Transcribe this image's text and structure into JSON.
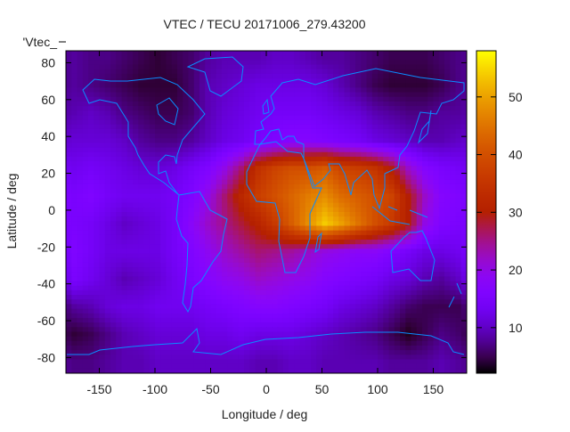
{
  "chart_data": {
    "type": "heatmap",
    "title": "VTEC / TECU 20171006_279.43200",
    "xlabel": "Longitude / deg",
    "ylabel": "Latitude / deg",
    "key_label": "'Vtec_",
    "xlim": [
      -180,
      180
    ],
    "ylim": [
      -88.5,
      86.5
    ],
    "xticks": [
      -150,
      -100,
      -50,
      0,
      50,
      100,
      150
    ],
    "yticks": [
      -80,
      -60,
      -40,
      -20,
      0,
      20,
      40,
      60,
      80
    ],
    "xtick_labels": [
      "-150",
      "-100",
      "-50",
      "0",
      "50",
      "100",
      "150"
    ],
    "ytick_labels": [
      "-80",
      "-60",
      "-40",
      "-20",
      "0",
      "20",
      "40",
      "60",
      "80"
    ],
    "colorbar": {
      "range": [
        2.1,
        58
      ],
      "ticks": [
        10,
        20,
        30,
        40,
        50
      ],
      "tick_labels": [
        "10",
        "20",
        "30",
        "40",
        "50"
      ],
      "palette": "black-blue-purple-red-orange-yellow"
    },
    "coastline_color": "#0a8cff",
    "grid_lon_centers": [
      -172.5,
      -157.5,
      -142.5,
      -127.5,
      -112.5,
      -97.5,
      -82.5,
      -67.5,
      -52.5,
      -37.5,
      -22.5,
      -7.5,
      7.5,
      22.5,
      37.5,
      52.5,
      67.5,
      82.5,
      97.5,
      112.5,
      127.5,
      142.5,
      157.5,
      172.5
    ],
    "grid_lat_centers": [
      82.5,
      67.5,
      52.5,
      37.5,
      22.5,
      7.5,
      -7.5,
      -22.5,
      -37.5,
      -52.5,
      -67.5,
      -82.5
    ],
    "values": [
      [
        8,
        7,
        7,
        6,
        5,
        4,
        5,
        6,
        8,
        9,
        9,
        9,
        10,
        10,
        9,
        8,
        8,
        7,
        6,
        5,
        5,
        5,
        6,
        7
      ],
      [
        8,
        7,
        6,
        5,
        4,
        4,
        4,
        6,
        9,
        10,
        11,
        12,
        12,
        12,
        12,
        11,
        9,
        7,
        5,
        4,
        4,
        4,
        5,
        7
      ],
      [
        9,
        10,
        9,
        7,
        6,
        5,
        5,
        6,
        9,
        11,
        12,
        13,
        14,
        14,
        14,
        13,
        12,
        11,
        9,
        8,
        7,
        7,
        8,
        8
      ],
      [
        11,
        11,
        11,
        10,
        8,
        7,
        7,
        8,
        10,
        12,
        13,
        15,
        16,
        17,
        17,
        16,
        15,
        14,
        12,
        11,
        10,
        9,
        9,
        10
      ],
      [
        13,
        14,
        13,
        12,
        11,
        11,
        12,
        14,
        16,
        20,
        26,
        34,
        38,
        40,
        40,
        42,
        38,
        37,
        35,
        30,
        22,
        17,
        15,
        14
      ],
      [
        15,
        16,
        14,
        13,
        13,
        13,
        14,
        16,
        20,
        26,
        32,
        37,
        40,
        43,
        46,
        48,
        44,
        42,
        40,
        38,
        30,
        22,
        17,
        16
      ],
      [
        15,
        14,
        12,
        10,
        11,
        12,
        14,
        18,
        22,
        25,
        28,
        31,
        36,
        42,
        48,
        54,
        50,
        45,
        40,
        36,
        30,
        20,
        16,
        15
      ],
      [
        16,
        14,
        12,
        12,
        12,
        12,
        14,
        16,
        19,
        22,
        24,
        26,
        25,
        24,
        22,
        20,
        19,
        18,
        18,
        16,
        14,
        12,
        12,
        13
      ],
      [
        15,
        13,
        11,
        9,
        10,
        11,
        13,
        15,
        17,
        19,
        20,
        22,
        21,
        20,
        19,
        17,
        16,
        15,
        14,
        12,
        11,
        9,
        8,
        10
      ],
      [
        8,
        9,
        11,
        12,
        12,
        13,
        13,
        13,
        14,
        15,
        16,
        17,
        17,
        16,
        15,
        14,
        12,
        11,
        10,
        8,
        6,
        5,
        5,
        5
      ],
      [
        4,
        5,
        7,
        9,
        10,
        11,
        11,
        11,
        12,
        12,
        13,
        12,
        12,
        12,
        11,
        10,
        9,
        8,
        7,
        5,
        3,
        5,
        7,
        6
      ],
      [
        7,
        7,
        8,
        9,
        9,
        10,
        10,
        10,
        10,
        10,
        10,
        9,
        9,
        10,
        10,
        9,
        9,
        9,
        9,
        8,
        8,
        8,
        9,
        8
      ]
    ]
  }
}
